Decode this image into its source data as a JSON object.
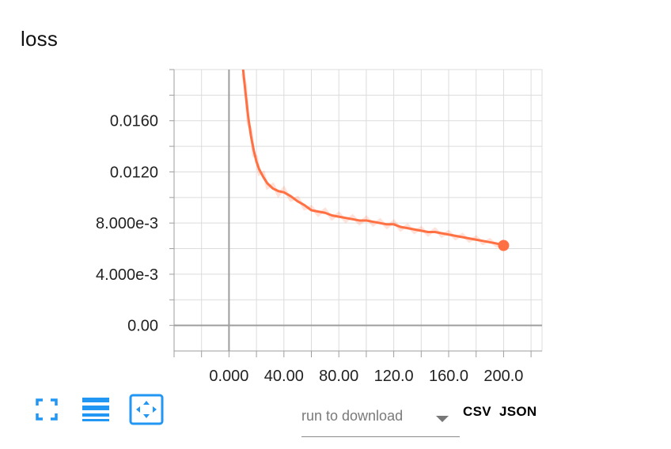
{
  "card": {
    "title": "loss"
  },
  "toolbar": {
    "fullscreen_icon": "fullscreen-icon",
    "list_icon": "list-icon",
    "fit_icon": "fit-domain-icon",
    "accent": "#2196f3"
  },
  "download": {
    "placeholder": "run to download",
    "csv_label": "CSV",
    "json_label": "JSON"
  },
  "chart_data": {
    "type": "line",
    "title": "loss",
    "xlabel": "",
    "ylabel": "",
    "xlim": [
      -40,
      228
    ],
    "ylim": [
      -0.002,
      0.02
    ],
    "x_ticks": [
      0,
      40,
      80,
      120,
      160,
      200
    ],
    "x_tick_labels": [
      "0.000",
      "40.00",
      "80.00",
      "120.0",
      "160.0",
      "200.0"
    ],
    "y_ticks": [
      0,
      0.004,
      0.008,
      0.012,
      0.016
    ],
    "y_tick_labels": [
      "0.00",
      "4.000e-3",
      "8.000e-3",
      "0.0120",
      "0.0160"
    ],
    "grid": true,
    "series": [
      {
        "color": "#ff7043",
        "x": [
          10,
          12,
          14,
          16,
          18,
          20,
          22,
          25,
          28,
          32,
          36,
          40,
          45,
          50,
          55,
          60,
          65,
          70,
          75,
          80,
          85,
          90,
          95,
          100,
          105,
          110,
          115,
          120,
          125,
          130,
          135,
          140,
          145,
          150,
          155,
          160,
          165,
          170,
          175,
          180,
          185,
          190,
          195,
          200
        ],
        "y": [
          0.0203,
          0.0182,
          0.0163,
          0.0148,
          0.0137,
          0.0128,
          0.0122,
          0.0116,
          0.0111,
          0.0107,
          0.0105,
          0.0104,
          0.0101,
          0.0097,
          0.0094,
          0.009,
          0.0089,
          0.0088,
          0.0086,
          0.0085,
          0.0084,
          0.0083,
          0.0082,
          0.0082,
          0.0081,
          0.008,
          0.0079,
          0.0079,
          0.0077,
          0.0076,
          0.0075,
          0.0074,
          0.0073,
          0.0073,
          0.0072,
          0.0071,
          0.007,
          0.0069,
          0.0068,
          0.0067,
          0.0066,
          0.0065,
          0.0064,
          0.00625
        ]
      }
    ]
  }
}
